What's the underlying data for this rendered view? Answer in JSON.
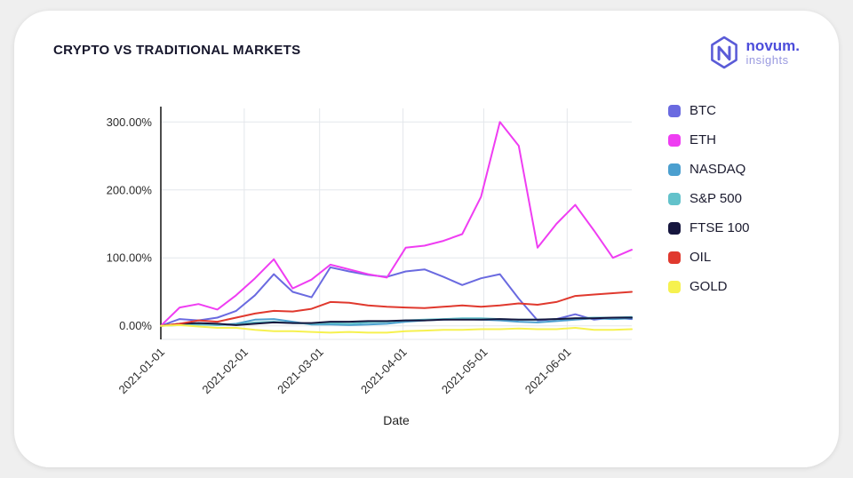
{
  "page": {
    "background": "#efefef",
    "card_background": "#ffffff"
  },
  "header": {
    "title": "CRYPTO VS TRADITIONAL MARKETS",
    "logo_name": "novum.",
    "logo_sub": "insights",
    "logo_color": "#5a5bd7"
  },
  "chart_data": {
    "type": "line",
    "title": "CRYPTO VS TRADITIONAL MARKETS",
    "xlabel": "Date",
    "ylabel": "",
    "x_unit": "days since 2021-01-01, weekly samples",
    "ylim": [
      -20,
      320
    ],
    "grid": true,
    "legend_position": "right",
    "axis_color": "#1f1f1f",
    "grid_color": "#e4e7eb",
    "y_ticks": [
      {
        "label": "0.00%",
        "value": 0
      },
      {
        "label": "100.00%",
        "value": 100
      },
      {
        "label": "200.00%",
        "value": 200
      },
      {
        "label": "300.00%",
        "value": 300
      }
    ],
    "x_ticks": [
      {
        "label": "2021-01-01",
        "value": 0
      },
      {
        "label": "2021-02-01",
        "value": 31
      },
      {
        "label": "2021-03-01",
        "value": 59
      },
      {
        "label": "2021-04-01",
        "value": 90
      },
      {
        "label": "2021-05-01",
        "value": 120
      },
      {
        "label": "2021-06-01",
        "value": 151
      }
    ],
    "x": [
      0,
      7,
      14,
      21,
      28,
      35,
      42,
      49,
      56,
      63,
      70,
      77,
      84,
      91,
      98,
      105,
      112,
      119,
      126,
      133,
      140,
      147,
      154,
      161,
      168,
      175
    ],
    "series": [
      {
        "name": "BTC",
        "color": "#6a6ae0",
        "values": [
          0,
          10,
          8,
          12,
          22,
          45,
          76,
          50,
          42,
          86,
          80,
          75,
          72,
          80,
          83,
          72,
          60,
          70,
          76,
          40,
          8,
          10,
          17,
          9,
          12,
          10
        ]
      },
      {
        "name": "ETH",
        "color": "#ef3df2",
        "values": [
          0,
          27,
          32,
          24,
          45,
          70,
          98,
          55,
          68,
          90,
          83,
          76,
          71,
          115,
          118,
          125,
          135,
          190,
          300,
          265,
          115,
          150,
          178,
          140,
          100,
          112
        ]
      },
      {
        "name": "NASDAQ",
        "color": "#4b9fcf",
        "values": [
          0,
          2,
          3,
          1,
          3,
          9,
          10,
          6,
          2,
          2,
          1,
          2,
          3,
          6,
          8,
          9,
          10,
          9,
          8,
          6,
          5,
          7,
          9,
          11,
          10,
          11
        ]
      },
      {
        "name": "S&P 500",
        "color": "#63c2cb",
        "values": [
          0,
          1,
          2,
          1,
          2,
          5,
          6,
          4,
          3,
          4,
          3,
          5,
          6,
          8,
          9,
          10,
          11,
          11,
          10,
          9,
          9,
          10,
          11,
          12,
          12,
          13
        ]
      },
      {
        "name": "FTSE 100",
        "color": "#16163e",
        "values": [
          0,
          3,
          4,
          3,
          1,
          3,
          5,
          4,
          4,
          6,
          6,
          7,
          7,
          8,
          8,
          9,
          9,
          9,
          10,
          9,
          9,
          10,
          11,
          11,
          12,
          12
        ]
      },
      {
        "name": "OIL",
        "color": "#e0392e",
        "values": [
          0,
          3,
          8,
          6,
          12,
          18,
          22,
          21,
          25,
          35,
          34,
          30,
          28,
          27,
          26,
          28,
          30,
          28,
          30,
          33,
          31,
          35,
          44,
          46,
          48,
          50
        ]
      },
      {
        "name": "GOLD",
        "color": "#f6f14f",
        "values": [
          0,
          1,
          -1,
          -3,
          -3,
          -6,
          -8,
          -8,
          -9,
          -10,
          -9,
          -10,
          -10,
          -8,
          -7,
          -6,
          -6,
          -5,
          -5,
          -4,
          -5,
          -5,
          -3,
          -6,
          -6,
          -5
        ]
      }
    ]
  }
}
